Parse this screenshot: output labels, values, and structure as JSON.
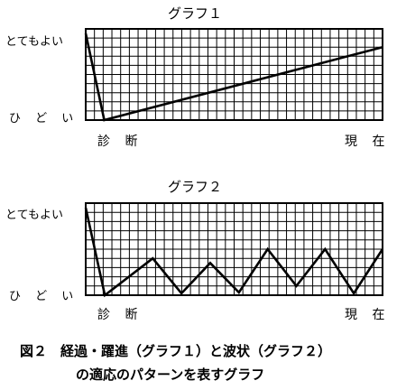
{
  "chart_data": [
    {
      "type": "line",
      "title": "グラフ１",
      "y_top_label": "とてもよい",
      "y_bottom_label": "ひ ど い",
      "x_start_label": "診 断",
      "x_end_label": "現 在",
      "grid": true,
      "x": [
        0,
        1,
        16
      ],
      "ylim": [
        0,
        10
      ],
      "xlim": [
        0,
        16
      ],
      "series": [
        {
          "values": [
            9.5,
            0,
            8
          ]
        }
      ]
    },
    {
      "type": "line",
      "title": "グラフ２",
      "y_top_label": "とてもよい",
      "y_bottom_label": "ひ ど い",
      "x_start_label": "診 断",
      "x_end_label": "現 在",
      "grid": true,
      "x": [
        0,
        1,
        3.5,
        5,
        6.5,
        8,
        9.5,
        11,
        12.5,
        14,
        15.5
      ],
      "ylim": [
        0,
        10
      ],
      "xlim": [
        0,
        15.5
      ],
      "series": [
        {
          "values": [
            9.5,
            0,
            4,
            0.2,
            3.5,
            0.3,
            5,
            1,
            5,
            0.2,
            5
          ]
        }
      ]
    }
  ],
  "caption": {
    "line1": "図２　経過・躍進（グラフ１）と波状（グラフ２）",
    "line2": "の適応のパターンを表すグラフ"
  }
}
